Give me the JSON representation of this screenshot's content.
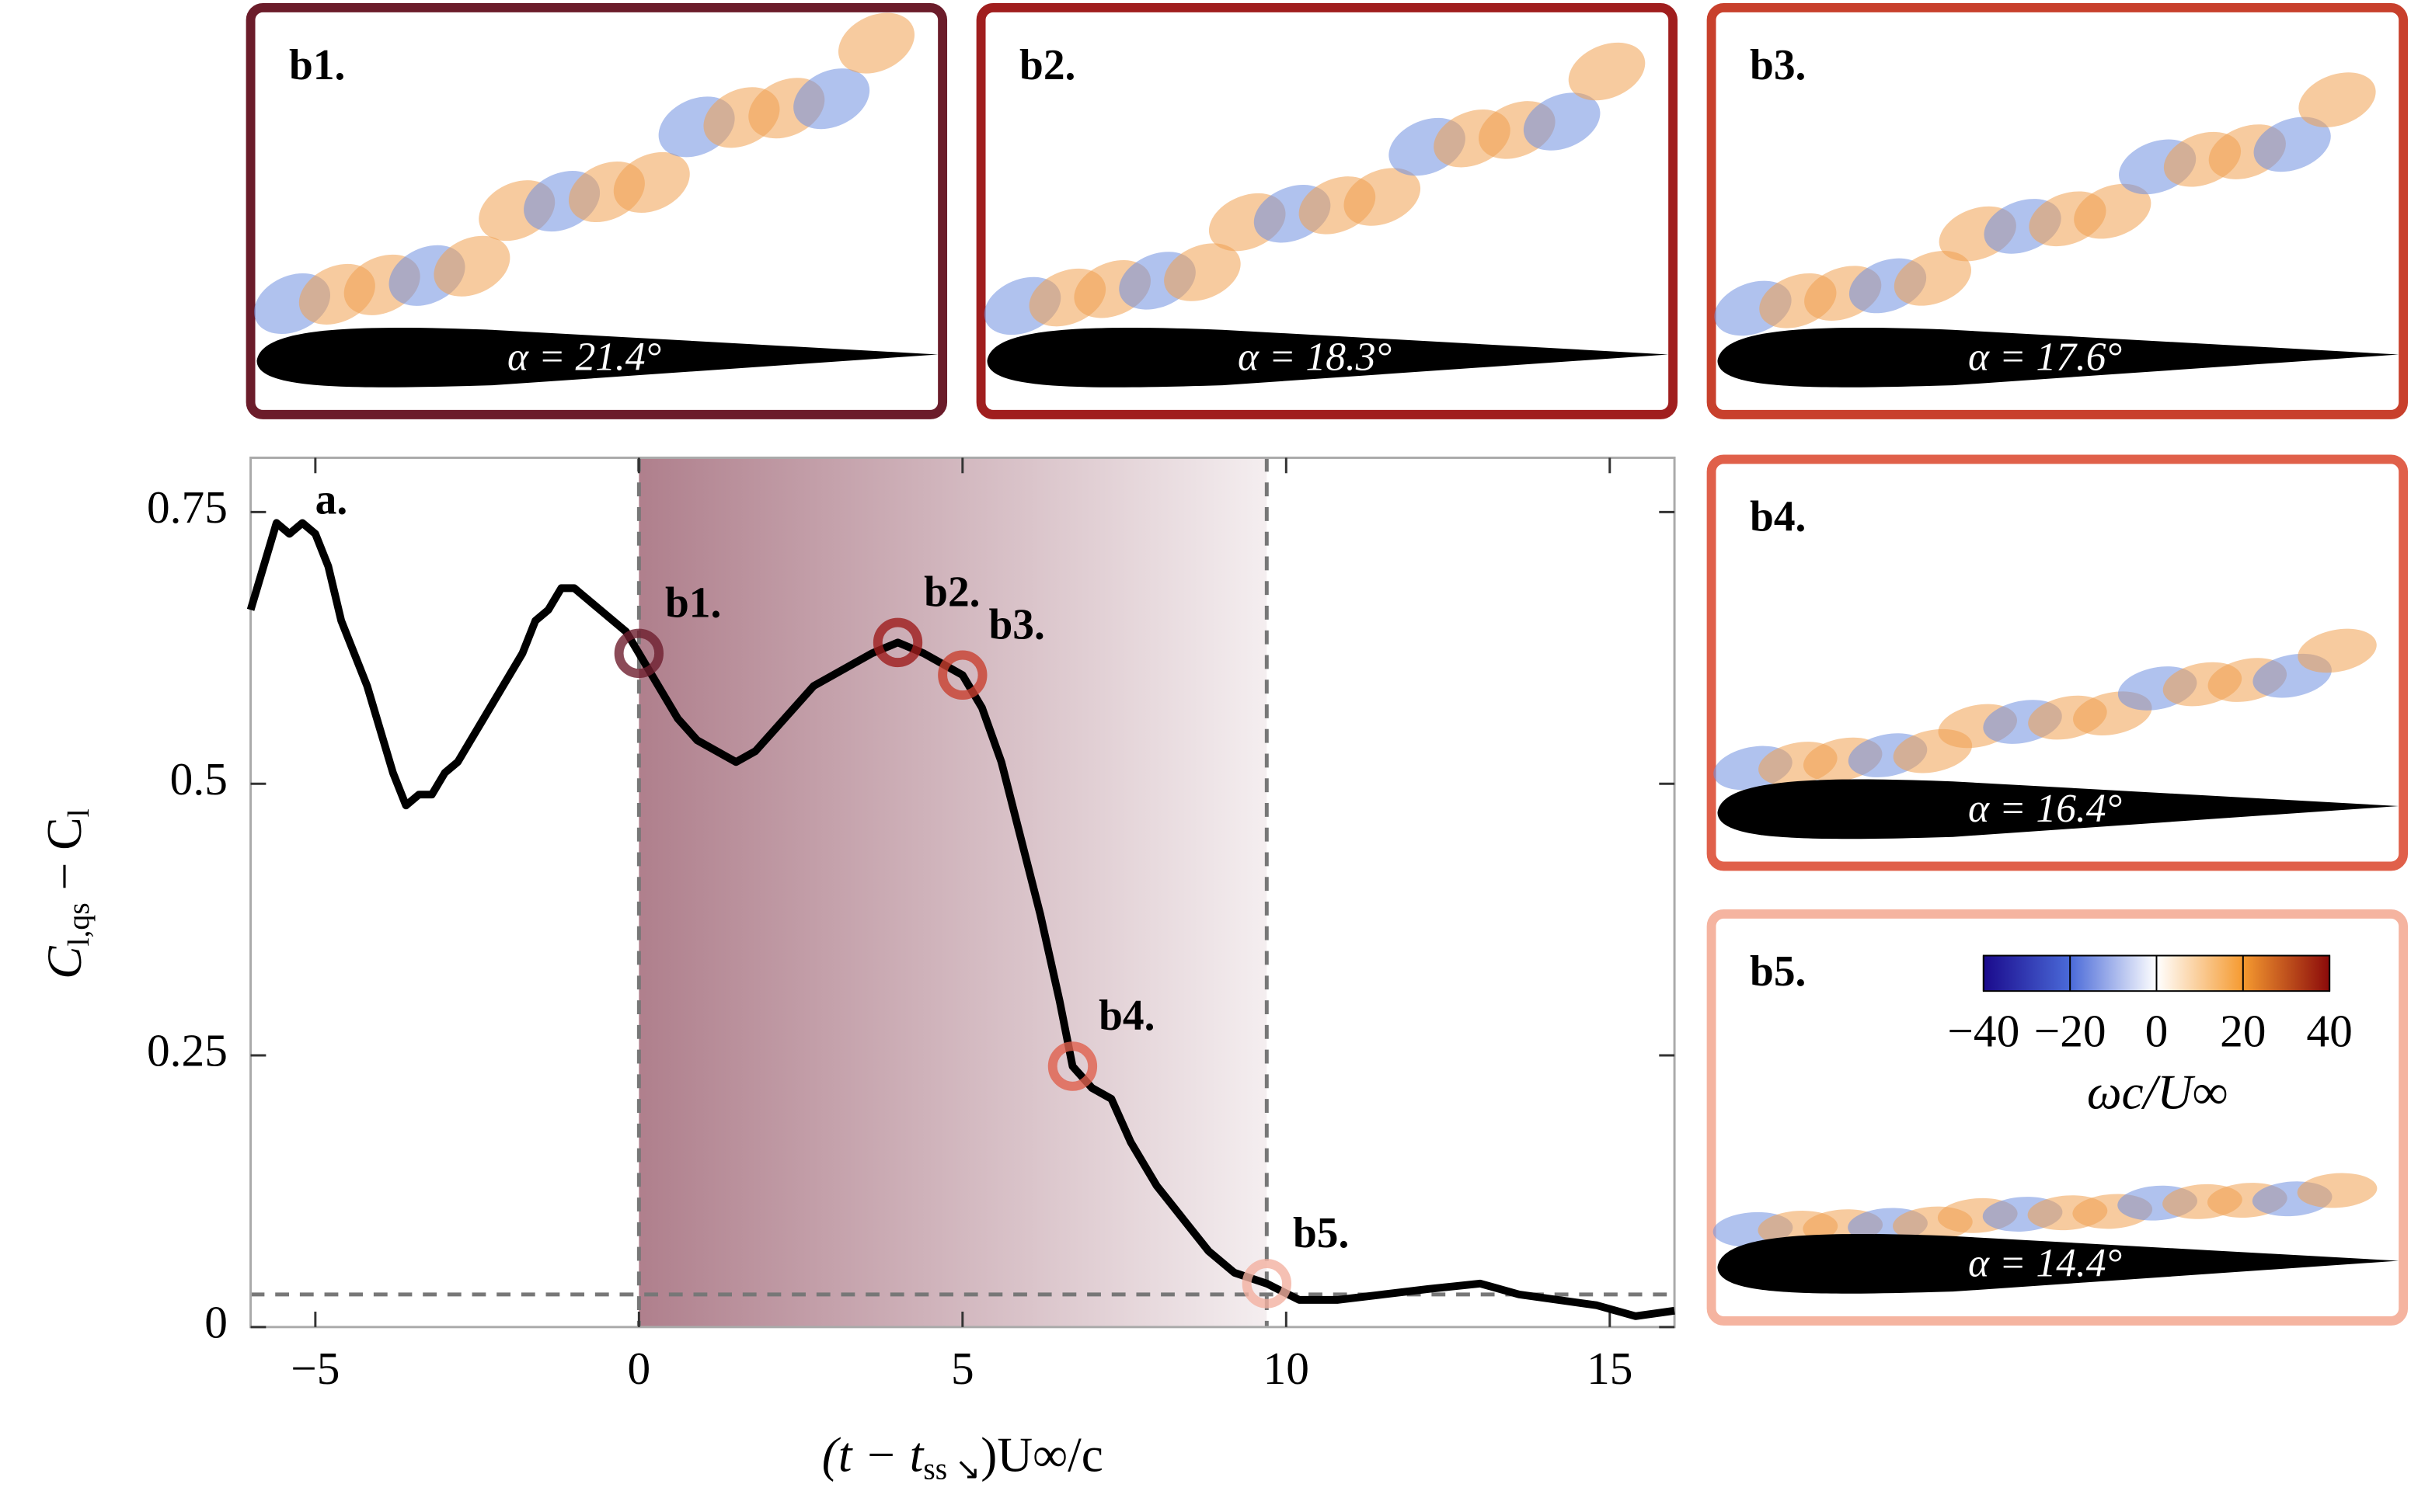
{
  "chart_data": {
    "type": "line",
    "x": [
      -6,
      -5.8,
      -5.6,
      -5.4,
      -5.2,
      -5,
      -4.8,
      -4.6,
      -4.4,
      -4.2,
      -4,
      -3.8,
      -3.6,
      -3.4,
      -3.2,
      -3,
      -2.8,
      -2.6,
      -2.4,
      -2.2,
      -2,
      -1.8,
      -1.6,
      -1.4,
      -1.2,
      -1,
      -0.8,
      -0.6,
      -0.4,
      -0.2,
      0,
      0.3,
      0.6,
      0.9,
      1.2,
      1.5,
      1.8,
      2.1,
      2.4,
      2.7,
      3,
      3.3,
      3.6,
      4,
      4.4,
      4.7,
      5,
      5.3,
      5.6,
      5.9,
      6.2,
      6.5,
      6.7,
      7,
      7.3,
      7.6,
      8,
      8.4,
      8.8,
      9.2,
      9.7,
      10.2,
      10.8,
      11.5,
      12.2,
      13,
      13.6,
      14.2,
      14.8,
      15.4,
      16
    ],
    "values": [
      0.66,
      0.7,
      0.74,
      0.73,
      0.74,
      0.73,
      0.7,
      0.65,
      0.62,
      0.59,
      0.55,
      0.51,
      0.48,
      0.49,
      0.49,
      0.51,
      0.52,
      0.54,
      0.56,
      0.58,
      0.6,
      0.62,
      0.65,
      0.66,
      0.68,
      0.68,
      0.67,
      0.66,
      0.65,
      0.64,
      0.62,
      0.59,
      0.56,
      0.54,
      0.53,
      0.52,
      0.53,
      0.55,
      0.57,
      0.59,
      0.6,
      0.61,
      0.62,
      0.63,
      0.62,
      0.61,
      0.6,
      0.57,
      0.52,
      0.45,
      0.38,
      0.3,
      0.24,
      0.22,
      0.21,
      0.17,
      0.13,
      0.1,
      0.07,
      0.05,
      0.04,
      0.025,
      0.025,
      0.03,
      0.035,
      0.04,
      0.03,
      0.025,
      0.02,
      0.01,
      0.015
    ],
    "color": "#000000",
    "xlim": [
      -6,
      16
    ],
    "ylim": [
      0,
      0.8
    ],
    "xticks": [
      {
        "value": -5,
        "label": "−5"
      },
      0,
      5,
      10,
      15
    ],
    "yticks": [
      0,
      0.25,
      0.5,
      0.75
    ],
    "x_label": [
      "(t − t",
      "ss ↘",
      ")U∞/c"
    ],
    "y_label": [
      "C",
      "l,qs",
      " − C",
      "l"
    ],
    "annotation": "a.",
    "shaded": [
      0,
      9.7
    ],
    "shade_color": "#7a2a40",
    "hline": 0.03,
    "highlights": [
      {
        "label": "b1.",
        "x": 0,
        "y": 0.62,
        "color": "#6e1e2e"
      },
      {
        "label": "b2.",
        "x": 4,
        "y": 0.63,
        "color": "#9e1c1c"
      },
      {
        "label": "b3.",
        "x": 5,
        "y": 0.6,
        "color": "#c84030"
      },
      {
        "label": "b4.",
        "x": 6.7,
        "y": 0.24,
        "color": "#e0604e"
      },
      {
        "label": "b5.",
        "x": 9.7,
        "y": 0.04,
        "color": "#f2b0a0"
      }
    ]
  },
  "panels": [
    {
      "label": "b1.",
      "alpha": "α = 21.4°",
      "color": "#6b1c2a"
    },
    {
      "label": "b2.",
      "alpha": "α = 18.3°",
      "color": "#a01e1e"
    },
    {
      "label": "b3.",
      "alpha": "α = 17.6°",
      "color": "#c8402c"
    },
    {
      "label": "b4.",
      "alpha": "α = 16.4°",
      "color": "#e0604a"
    },
    {
      "label": "b5.",
      "alpha": "α = 14.4°",
      "color": "#f5b4a0"
    }
  ],
  "colorbar": {
    "range": [
      -40,
      40
    ],
    "ticks": [
      {
        "value": -40,
        "label": "−40"
      },
      {
        "value": -20,
        "label": "−20"
      },
      0,
      20,
      40
    ],
    "label": "ωc/U∞",
    "colors": [
      "#1a0a8c",
      "#4a6ad8",
      "#ffffff",
      "#f59a30",
      "#8b0a0a"
    ]
  }
}
